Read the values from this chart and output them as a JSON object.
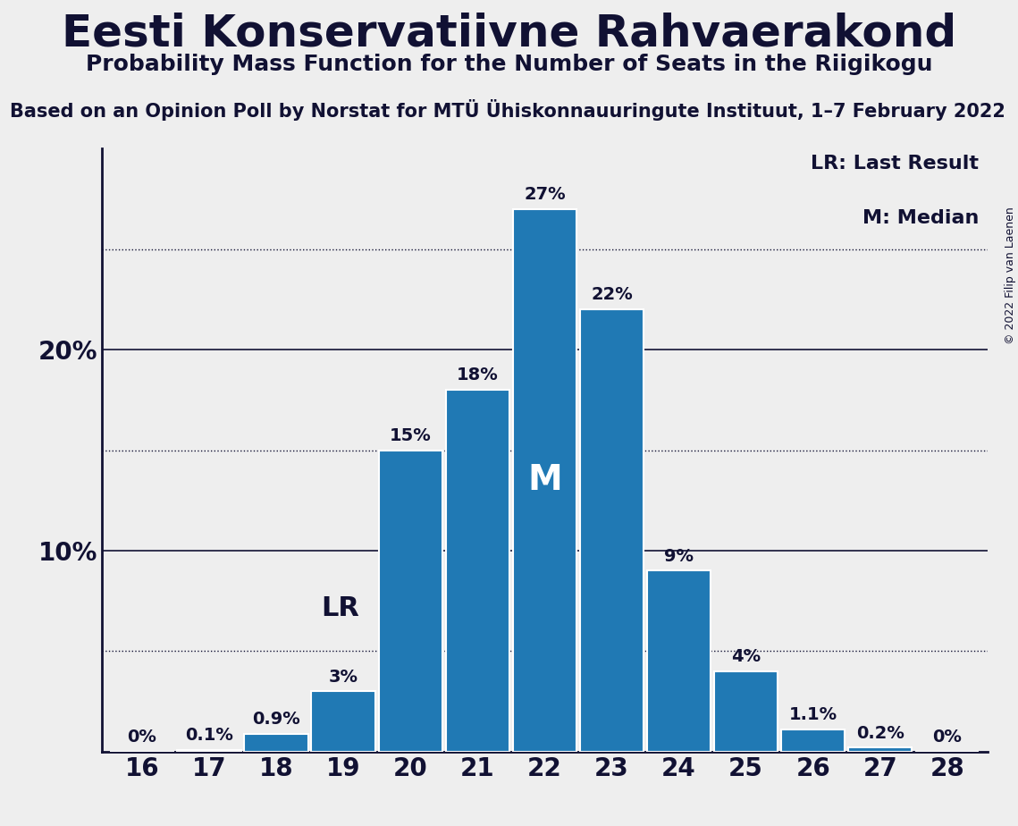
{
  "title": "Eesti Konservatiivne Rahvaerakond",
  "subtitle": "Probability Mass Function for the Number of Seats in the Riigikogu",
  "subsubtitle": "Based on an Opinion Poll by Norstat for MTÜ Ühiskonnauuringute Instituut, 1–7 February 2022",
  "copyright": "© 2022 Filip van Laenen",
  "seats": [
    16,
    17,
    18,
    19,
    20,
    21,
    22,
    23,
    24,
    25,
    26,
    27,
    28
  ],
  "probabilities": [
    0.0,
    0.1,
    0.9,
    3.0,
    15.0,
    18.0,
    27.0,
    22.0,
    9.0,
    4.0,
    1.1,
    0.2,
    0.0
  ],
  "bar_color": "#2079b4",
  "bar_edge_color": "white",
  "background_color": "#eeeeee",
  "last_result_seat": 19,
  "median_seat": 22,
  "dotted_lines": [
    5,
    15,
    25
  ],
  "solid_lines": [
    10,
    20
  ],
  "ylim": [
    0,
    30
  ],
  "title_fontsize": 36,
  "subtitle_fontsize": 18,
  "subsubtitle_fontsize": 15,
  "bar_label_fontsize": 14,
  "axis_label_fontsize": 20,
  "legend_fontsize": 16,
  "special_label_fontsize": 22,
  "m_label_fontsize": 28,
  "text_color": "#111133"
}
